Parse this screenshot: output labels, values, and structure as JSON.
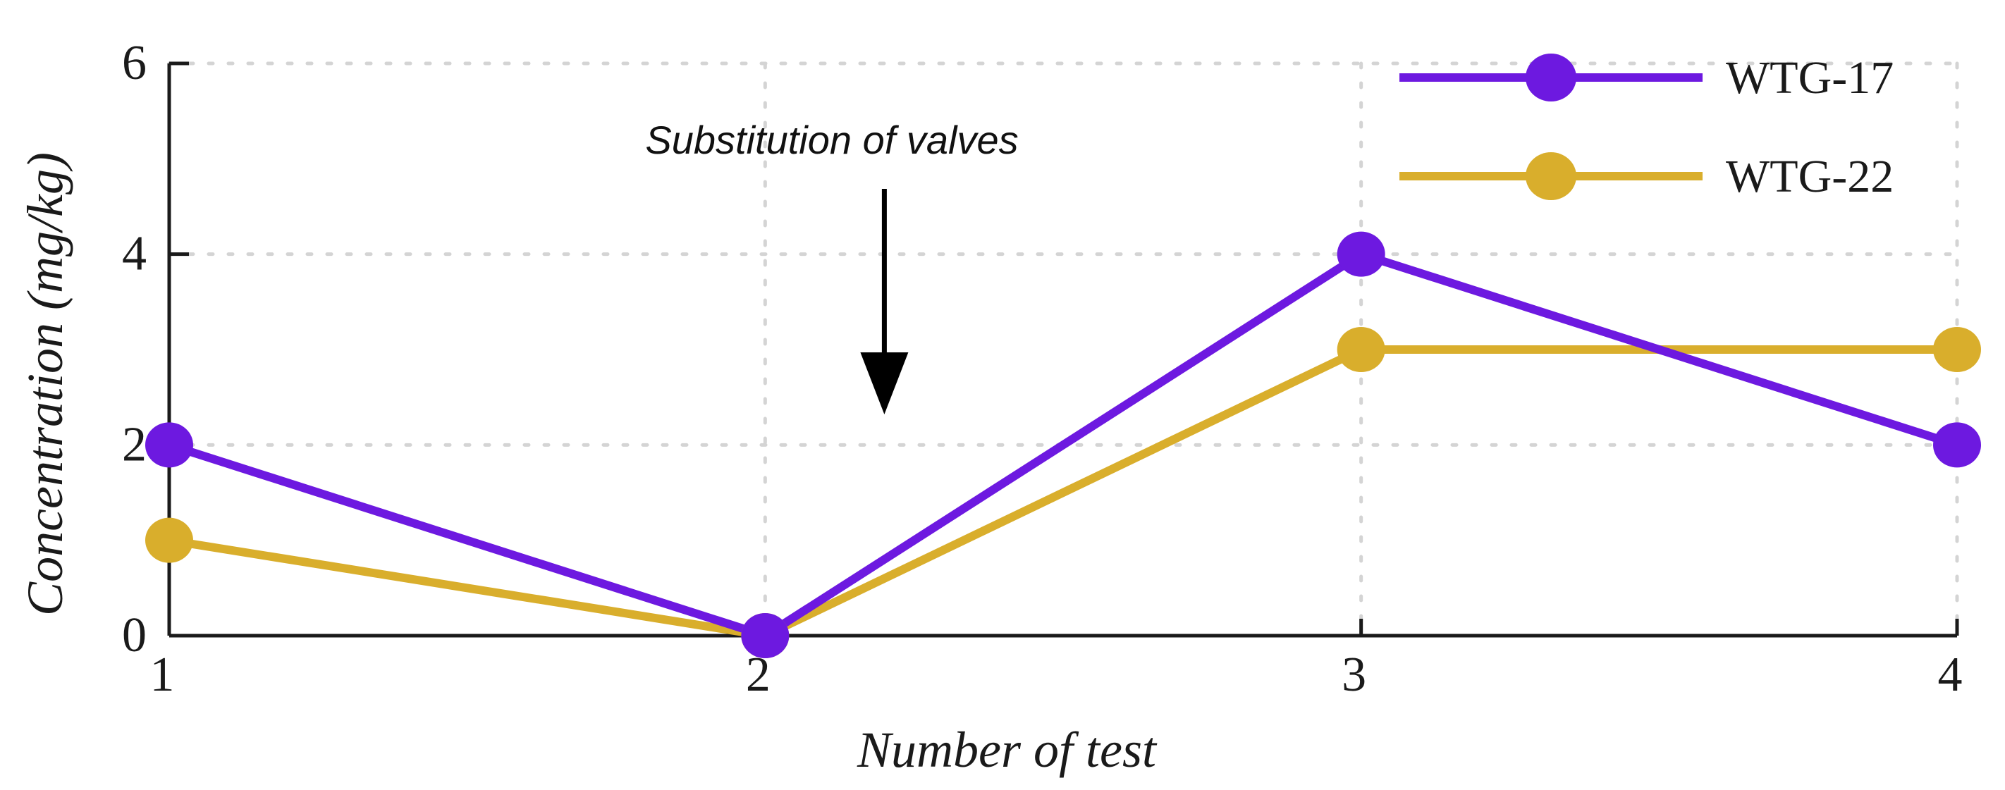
{
  "chart_data": {
    "type": "line",
    "title": "",
    "xlabel": "Number of test",
    "ylabel": "Concentration (mg/kg)",
    "x": [
      1,
      2,
      3,
      4
    ],
    "xlim": [
      1,
      4
    ],
    "ylim": [
      0,
      6
    ],
    "xticks": [
      "1",
      "2",
      "3",
      "4"
    ],
    "yticks": [
      "0",
      "2",
      "4",
      "6"
    ],
    "grid": true,
    "legend_position": "top-right",
    "series": [
      {
        "name": "WTG-17",
        "values": [
          2,
          0,
          4,
          2
        ],
        "color": "#6d19e0"
      },
      {
        "name": "WTG-22",
        "values": [
          1,
          0,
          3,
          3
        ],
        "color": "#d9ae2c"
      }
    ],
    "annotation": {
      "text": "Substitution of valves",
      "x": 2.2
    }
  }
}
